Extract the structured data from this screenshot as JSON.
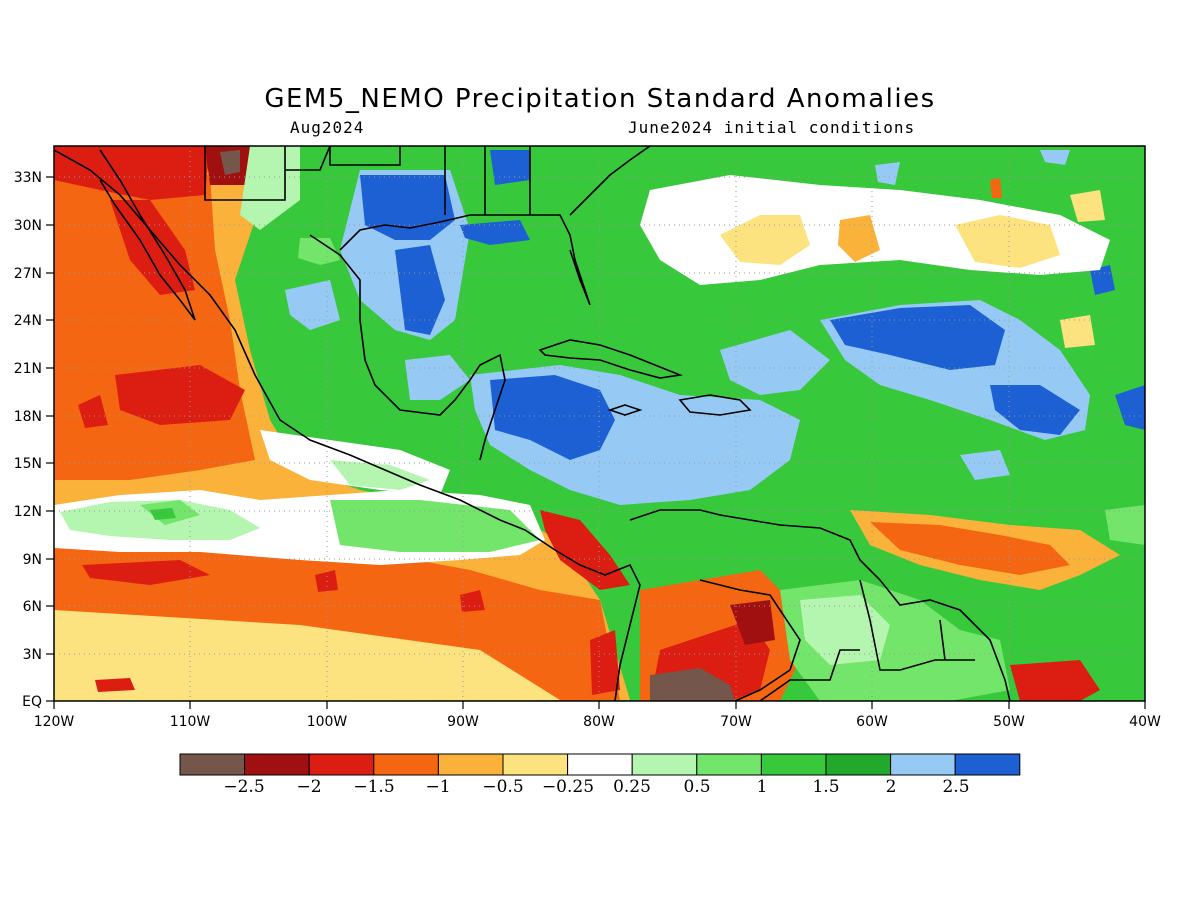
{
  "header": {
    "title": "GEM5_NEMO Precipitation Standard Anomalies",
    "left_subtitle": "Aug2024",
    "right_subtitle": "June2024 initial conditions"
  },
  "map": {
    "lat_labels": [
      "EQ",
      "3N",
      "6N",
      "9N",
      "12N",
      "15N",
      "18N",
      "21N",
      "24N",
      "27N",
      "30N",
      "33N"
    ],
    "lon_labels": [
      "120W",
      "110W",
      "100W",
      "90W",
      "80W",
      "70W",
      "60W",
      "50W",
      "40W"
    ]
  },
  "colorbar": {
    "colors": [
      "#75564a",
      "#a01010",
      "#dc1e12",
      "#f56612",
      "#fbb23a",
      "#fde37f",
      "#ffffff",
      "#b4f5b0",
      "#72e56a",
      "#38c83c",
      "#22a82a",
      "#96caf5",
      "#1c60d4"
    ],
    "labels": [
      "−2.5",
      "−2",
      "−1.5",
      "−1",
      "−0.5",
      "−0.25",
      "0.25",
      "0.5",
      "1",
      "1.5",
      "2",
      "2.5"
    ]
  }
}
